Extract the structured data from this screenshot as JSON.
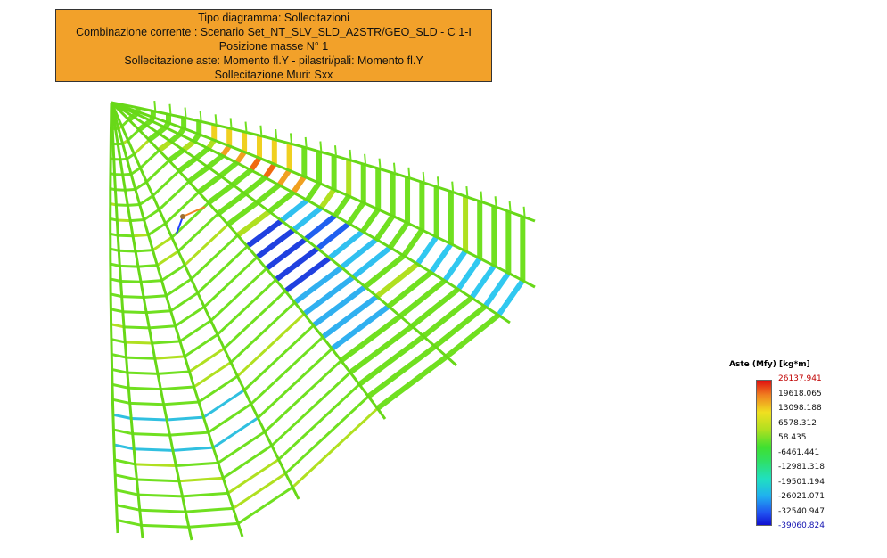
{
  "header": {
    "lines": [
      "Tipo diagramma: Sollecitazioni",
      "Combinazione corrente : Scenario Set_NT_SLV_SLD_A2STR/GEO_SLD - C 1-I",
      "Posizione masse N° 1",
      "Sollecitazione aste: Momento fl.Y - pilastri/pali: Momento fl.Y",
      "Sollecitazione Muri: Sxx"
    ]
  },
  "legend": {
    "title": "Aste (Mfy) [kg*m]",
    "labels": [
      "26137.941",
      "19618.065",
      "13098.188",
      "6578.312",
      "58.435",
      "-6461.441",
      "-12981.318",
      "-19501.194",
      "-26021.071",
      "-32540.947",
      "-39060.824"
    ]
  }
}
